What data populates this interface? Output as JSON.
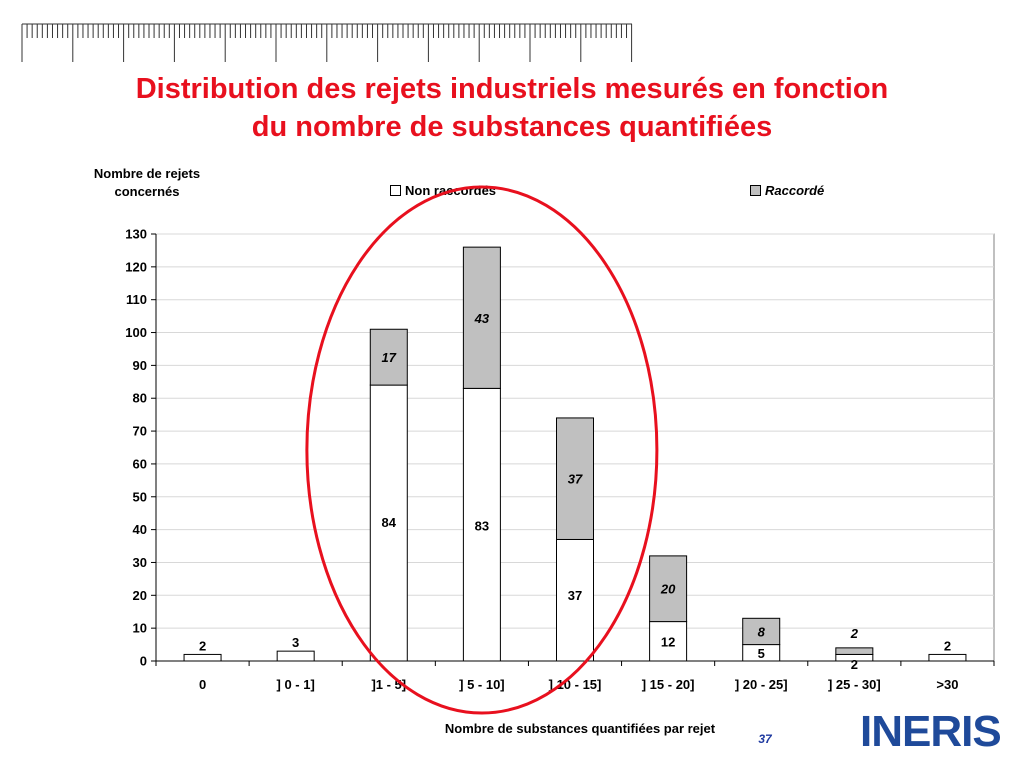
{
  "title": {
    "line1": "Distribution des rejets industriels mesurés en fonction",
    "line2": "du nombre de substances quantifiées"
  },
  "logo": {
    "text": "INERIS"
  },
  "page_number": "37",
  "colors": {
    "title": "#e8101e",
    "non_raccorde": "#ffffff",
    "raccorde": "#c0c0c0",
    "ellipse": "#e8101e",
    "logo": "#1f4a9a"
  },
  "chart_data": {
    "type": "bar",
    "stacked": true,
    "ylabel": [
      "Nombre de rejets",
      "concernés"
    ],
    "xlabel": "Nombre de substances quantifiées par rejet",
    "ylim": [
      0,
      130
    ],
    "yticks": [
      0,
      10,
      20,
      30,
      40,
      50,
      60,
      70,
      80,
      90,
      100,
      110,
      120,
      130
    ],
    "grid": true,
    "legend_position": "top",
    "categories": [
      "0",
      "] 0 - 1]",
      "]1 - 5]",
      "] 5 - 10]",
      "] 10 - 15]",
      "] 15 - 20]",
      "] 20 - 25]",
      "] 25 - 30]",
      ">30"
    ],
    "series": [
      {
        "name": "Non raccordés",
        "values": [
          2,
          3,
          84,
          83,
          37,
          12,
          5,
          2,
          2
        ],
        "color": "#ffffff"
      },
      {
        "name": "Raccordé",
        "values": [
          0,
          0,
          17,
          43,
          37,
          20,
          8,
          2,
          0
        ],
        "color": "#c0c0c0"
      }
    ],
    "data_labels": {
      "Non raccordés": [
        "2",
        "3",
        "84",
        "83",
        "37",
        "12",
        "5",
        "2",
        "2"
      ],
      "Raccordé": [
        "",
        "",
        "17",
        "43",
        "37",
        "20",
        "8",
        "2",
        ""
      ]
    },
    "highlight": {
      "shape": "ellipse",
      "categories": [
        "]1 - 5]",
        "] 5 - 10]",
        "] 10 - 15]"
      ],
      "color": "#e8101e"
    }
  }
}
